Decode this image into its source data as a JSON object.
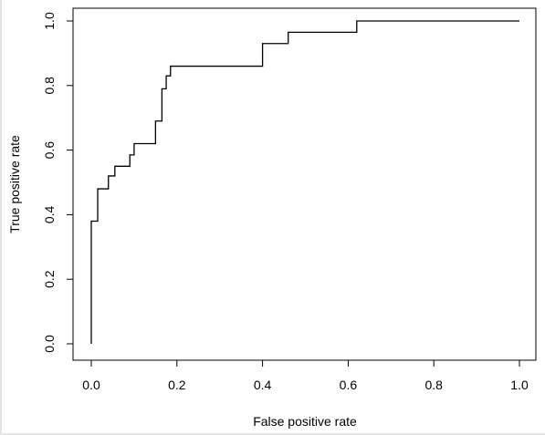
{
  "chart_data": {
    "type": "line",
    "title": "",
    "xlabel": "False positive rate",
    "ylabel": "True positive rate",
    "xlim": [
      0,
      1
    ],
    "ylim": [
      0,
      1
    ],
    "x_ticks": [
      "0.0",
      "0.2",
      "0.4",
      "0.6",
      "0.8",
      "1.0"
    ],
    "y_ticks": [
      "0.0",
      "0.2",
      "0.4",
      "0.6",
      "0.8",
      "1.0"
    ],
    "grid": false,
    "legend": "none",
    "line_color": "#000000",
    "series": [
      {
        "x": [
          0.0,
          0.0,
          0.015,
          0.015,
          0.04,
          0.04,
          0.055,
          0.055,
          0.09,
          0.09,
          0.1,
          0.1,
          0.15,
          0.15,
          0.165,
          0.165,
          0.175,
          0.175,
          0.185,
          0.185,
          0.4,
          0.4,
          0.46,
          0.46,
          0.62,
          0.62,
          1.0
        ],
        "y": [
          0.0,
          0.38,
          0.38,
          0.48,
          0.48,
          0.52,
          0.52,
          0.55,
          0.55,
          0.585,
          0.585,
          0.62,
          0.62,
          0.69,
          0.69,
          0.79,
          0.79,
          0.83,
          0.83,
          0.86,
          0.86,
          0.93,
          0.93,
          0.965,
          0.965,
          1.0,
          1.0
        ]
      }
    ]
  }
}
